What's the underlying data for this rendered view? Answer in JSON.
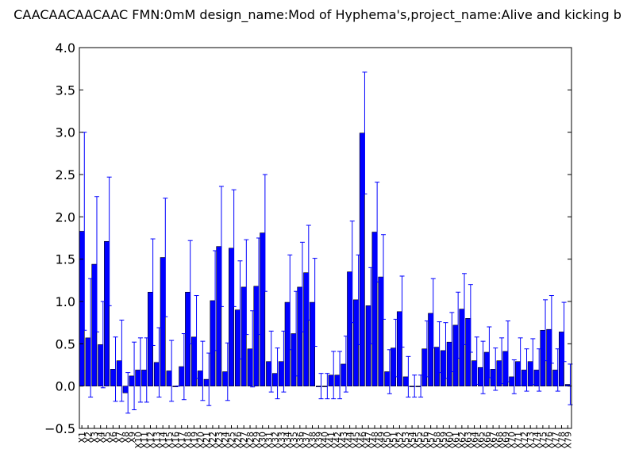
{
  "chart_data": {
    "type": "bar",
    "title": "CAACAACAACAAC  FMN:0mM  design_name:Mod of Hyphema's,project_name:Alive and kicking b",
    "xlabel": "",
    "ylabel": "",
    "ylim": [
      -0.5,
      4.0
    ],
    "yticks": [
      "−0.5",
      "0.0",
      "0.5",
      "1.0",
      "1.5",
      "2.0",
      "2.5",
      "3.0",
      "3.5",
      "4.0"
    ],
    "grid": false,
    "bar_color": "#0000ff",
    "error_color": "#0000ff",
    "categories": [
      "X1",
      "X2",
      "X3",
      "X4",
      "X5",
      "X6",
      "X7",
      "X8",
      "X9",
      "X10",
      "X11",
      "X12",
      "X13",
      "X14",
      "X15",
      "X16",
      "X17",
      "X18",
      "X19",
      "X20",
      "X21",
      "X22",
      "X23",
      "X24",
      "X25",
      "X26",
      "X27",
      "X28",
      "X29",
      "X30",
      "X31",
      "X32",
      "X33",
      "X34",
      "X35",
      "X36",
      "X37",
      "X38",
      "X39",
      "X40",
      "X41",
      "X42",
      "X43",
      "X44",
      "X45",
      "X46",
      "X47",
      "X48",
      "X49",
      "X50",
      "X51",
      "X52",
      "X53",
      "X54",
      "X55",
      "X56",
      "X57",
      "X58",
      "X59",
      "X60",
      "X61",
      "X62",
      "X63",
      "X64",
      "X65",
      "X66",
      "X67",
      "X68",
      "X69",
      "X70",
      "X71",
      "X72",
      "X73",
      "X74",
      "X75",
      "X76",
      "X77",
      "X78",
      "X79"
    ],
    "values": [
      1.83,
      0.57,
      1.44,
      0.49,
      1.71,
      0.2,
      0.3,
      -0.08,
      0.12,
      0.19,
      0.19,
      1.11,
      0.28,
      1.52,
      0.18,
      0.0,
      0.23,
      1.11,
      0.58,
      0.18,
      0.08,
      1.01,
      1.65,
      0.17,
      1.63,
      0.9,
      1.17,
      0.44,
      1.18,
      1.81,
      0.29,
      0.15,
      0.29,
      0.99,
      0.62,
      1.17,
      1.34,
      0.99,
      0.0,
      0.0,
      0.13,
      0.13,
      0.26,
      1.35,
      1.02,
      2.99,
      0.95,
      1.82,
      1.29,
      0.17,
      0.45,
      0.88,
      0.11,
      0.0,
      0.0,
      0.44,
      0.86,
      0.46,
      0.42,
      0.52,
      0.72,
      0.91,
      0.8,
      0.3,
      0.22,
      0.4,
      0.2,
      0.3,
      0.41,
      0.11,
      0.29,
      0.19,
      0.29,
      0.19,
      0.66,
      0.67,
      0.19,
      0.64,
      0.02
    ],
    "errors": [
      1.17,
      0.7,
      0.8,
      0.51,
      0.76,
      0.38,
      0.48,
      0.24,
      0.4,
      0.38,
      0.38,
      0.63,
      0.41,
      0.7,
      0.36,
      0.0,
      0.39,
      0.61,
      0.49,
      0.35,
      0.31,
      0.59,
      0.71,
      0.34,
      0.69,
      0.58,
      0.56,
      0.45,
      0.57,
      0.69,
      0.36,
      0.3,
      0.36,
      0.56,
      0.5,
      0.53,
      0.56,
      0.52,
      0.15,
      0.15,
      0.28,
      0.28,
      0.33,
      0.6,
      0.53,
      0.72,
      0.45,
      0.59,
      0.5,
      0.26,
      0.34,
      0.42,
      0.24,
      0.13,
      0.13,
      0.33,
      0.41,
      0.3,
      0.33,
      0.35,
      0.39,
      0.42,
      0.4,
      0.28,
      0.31,
      0.3,
      0.25,
      0.27,
      0.36,
      0.2,
      0.28,
      0.25,
      0.27,
      0.25,
      0.36,
      0.4,
      0.25,
      0.35,
      0.24
    ]
  }
}
